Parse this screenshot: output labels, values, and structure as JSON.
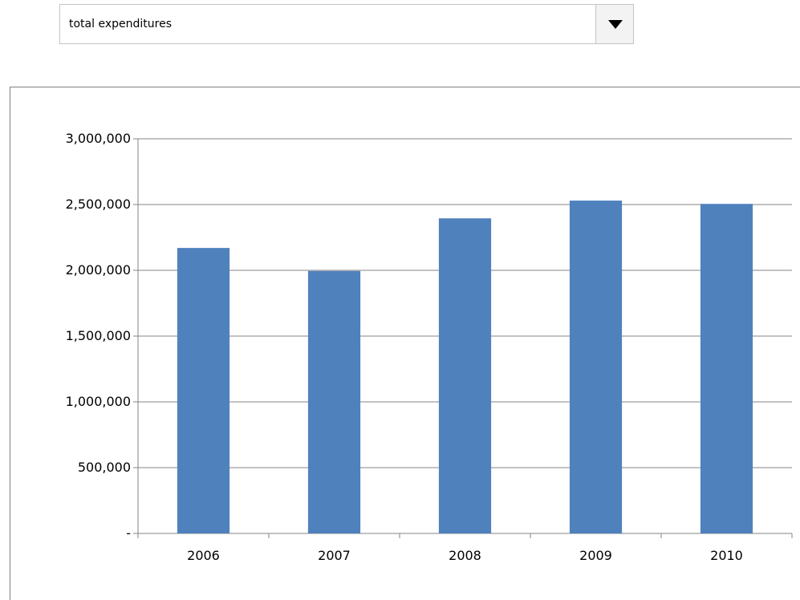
{
  "dropdown": {
    "selected": "total expenditures"
  },
  "chart_data": {
    "type": "bar",
    "categories": [
      "2006",
      "2007",
      "2008",
      "2009",
      "2010"
    ],
    "values": [
      2170000,
      1995000,
      2395000,
      2530000,
      2505000
    ],
    "ylim": [
      0,
      3000000
    ],
    "yticks": [
      0,
      500000,
      1000000,
      1500000,
      2000000,
      2500000,
      3000000
    ],
    "ytick_labels": [
      "-",
      "500,000",
      "1,000,000",
      "1,500,000",
      "2,000,000",
      "2,500,000",
      "3,000,000"
    ],
    "bar_color": "#4f81bd",
    "grid": true,
    "legend": "none"
  }
}
